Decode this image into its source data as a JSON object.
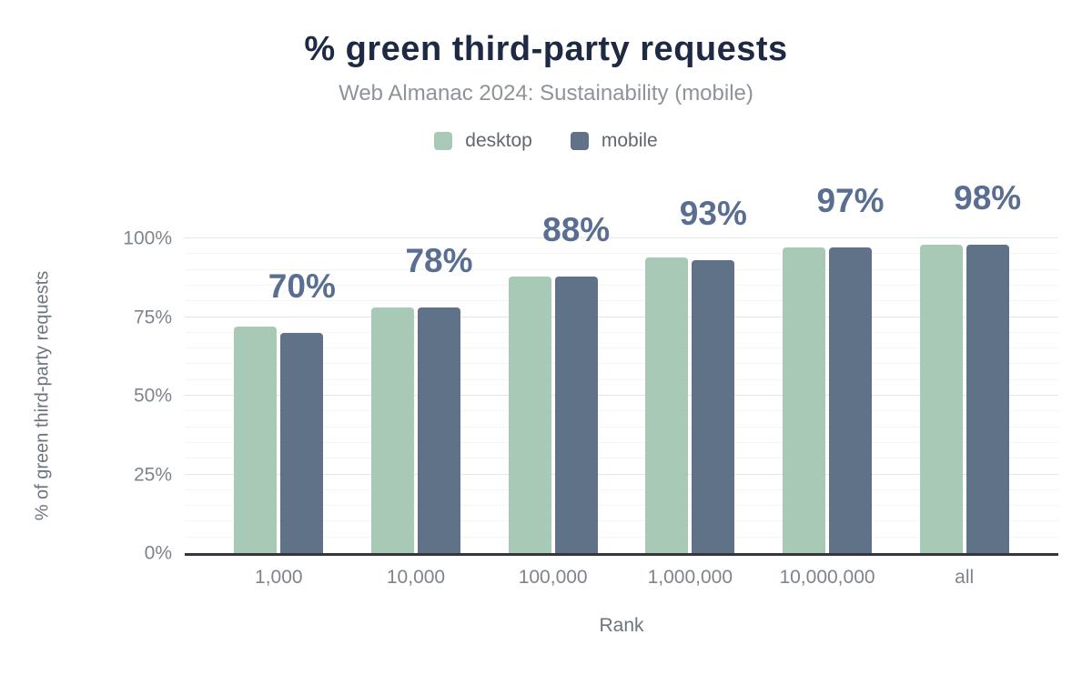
{
  "chart": {
    "title": "% green third-party requests",
    "subtitle": "Web Almanac 2024: Sustainability (mobile)",
    "xlabel": "Rank",
    "ylabel": "% of green third-party requests"
  },
  "chart_data": {
    "type": "bar",
    "categories": [
      "1,000",
      "10,000",
      "100,000",
      "1,000,000",
      "10,000,000",
      "all"
    ],
    "series": [
      {
        "name": "desktop",
        "color": "#a7c9b5",
        "values": [
          72,
          78,
          88,
          94,
          97,
          98
        ]
      },
      {
        "name": "mobile",
        "color": "#5f7288",
        "values": [
          70,
          78,
          88,
          93,
          97,
          98
        ]
      }
    ],
    "data_labels": [
      "70%",
      "78%",
      "88%",
      "93%",
      "97%",
      "98%"
    ],
    "data_labels_series": "mobile",
    "y_ticks": [
      "0%",
      "25%",
      "50%",
      "75%",
      "100%"
    ],
    "ylim": [
      0,
      100
    ],
    "grid": {
      "major_step": 25,
      "minor_step": 5
    },
    "legend_position": "top",
    "title": "% green third-party requests",
    "xlabel": "Rank",
    "ylabel": "% of green third-party requests"
  },
  "colors": {
    "title": "#1e2a44",
    "subtitle": "#8e939b",
    "legend_text": "#61676f",
    "tick_text": "#7e848d",
    "axis_title_text": "#6e747e",
    "data_label": "#5a6e91",
    "grid_major": "#e4e5e7",
    "grid_minor": "#f3f4f6",
    "axis_line": "#33363b",
    "background": "#ffffff"
  }
}
